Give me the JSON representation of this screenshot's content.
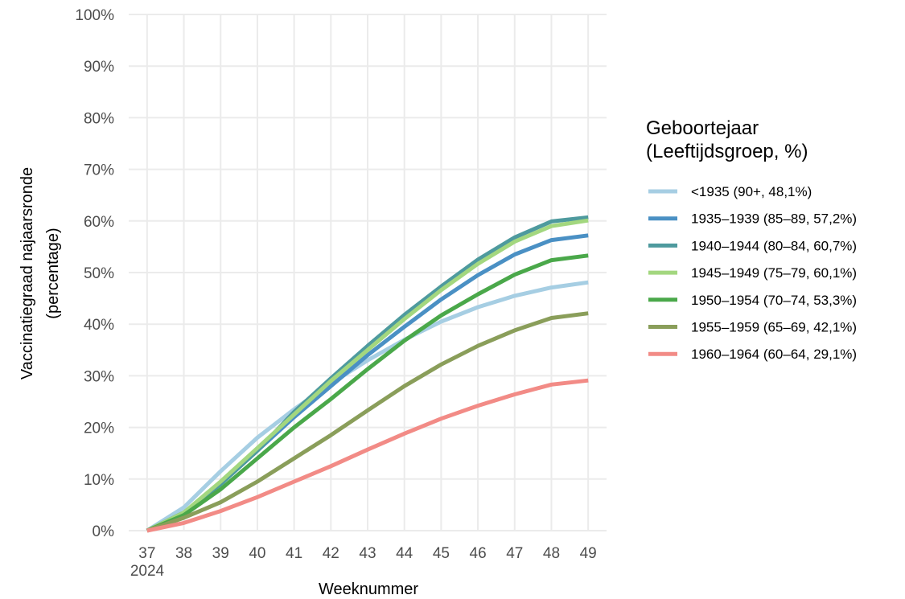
{
  "chart_data": {
    "type": "line",
    "xlabel": "Weeknummer",
    "ylabel_line1": "Vaccinatiegraad najaarsronde",
    "ylabel_line2": "(percentage)",
    "x": [
      37,
      38,
      39,
      40,
      41,
      42,
      43,
      44,
      45,
      46,
      47,
      48,
      49
    ],
    "x_tick_labels": [
      "37",
      "38",
      "39",
      "40",
      "41",
      "42",
      "43",
      "44",
      "45",
      "46",
      "47",
      "48",
      "49"
    ],
    "x_sublabel": "2024",
    "ylim": [
      0,
      100
    ],
    "y_ticks": [
      0,
      10,
      20,
      30,
      40,
      50,
      60,
      70,
      80,
      90,
      100
    ],
    "y_tick_labels": [
      "0%",
      "10%",
      "20%",
      "30%",
      "40%",
      "50%",
      "60%",
      "70%",
      "80%",
      "90%",
      "100%"
    ],
    "grid": true,
    "legend": {
      "position": "right",
      "title_line1": "Geboortejaar",
      "title_line2": "(Leeftijdsgroep, %)"
    },
    "series": [
      {
        "name": "<1935 (90+, 48,1%)",
        "color": "#a6cee3",
        "values": [
          0,
          4.5,
          11.5,
          18,
          23.5,
          28.5,
          33,
          37,
          40.5,
          43.3,
          45.5,
          47.1,
          48.1
        ]
      },
      {
        "name": "1935–1939 (85–89, 57,2%)",
        "color": "#4a90c4",
        "values": [
          0,
          3.5,
          9,
          15.5,
          22,
          28,
          34,
          39.5,
          44.8,
          49.5,
          53.5,
          56.3,
          57.2
        ]
      },
      {
        "name": "1940–1944 (80–84, 60,7%)",
        "color": "#4e9a9e",
        "values": [
          0,
          3.5,
          9,
          15.5,
          23,
          29.5,
          35.8,
          41.8,
          47.3,
          52.5,
          56.8,
          59.9,
          60.7
        ]
      },
      {
        "name": "1945–1949 (75–79, 60,1%)",
        "color": "#a3d77f",
        "values": [
          0,
          3.5,
          9.5,
          16,
          22.5,
          29,
          35,
          41,
          46.6,
          51.7,
          56,
          59,
          60.1
        ]
      },
      {
        "name": "1950–1954 (70–74, 53,3%)",
        "color": "#4aa84a",
        "values": [
          0,
          3,
          8,
          14,
          20,
          25.5,
          31.3,
          36.8,
          41.7,
          45.8,
          49.6,
          52.4,
          53.3
        ]
      },
      {
        "name": "1955–1959 (65–69, 42,1%)",
        "color": "#8a9e5a",
        "values": [
          0,
          2.5,
          5.5,
          9.5,
          14,
          18.5,
          23.3,
          28,
          32.2,
          35.8,
          38.8,
          41.2,
          42.1
        ]
      },
      {
        "name": "1960–1964 (60–64, 29,1%)",
        "color": "#f28b86",
        "values": [
          0,
          1.5,
          3.8,
          6.5,
          9.5,
          12.5,
          15.7,
          18.8,
          21.7,
          24.2,
          26.4,
          28.3,
          29.1
        ]
      }
    ]
  }
}
